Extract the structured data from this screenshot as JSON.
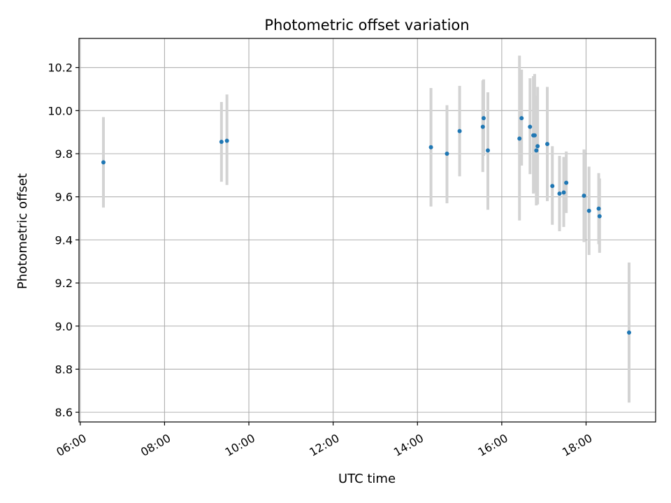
{
  "chart_data": {
    "type": "scatter",
    "title": "Photometric offset variation",
    "xlabel": "UTC time",
    "ylabel": "Photometric offset",
    "x_unit": "hours UTC",
    "xlim": [
      5.97,
      19.65
    ],
    "ylim": [
      8.555,
      10.335
    ],
    "x_ticks": [
      6,
      8,
      10,
      12,
      14,
      16,
      18
    ],
    "x_tick_labels": [
      "06:00",
      "08:00",
      "10:00",
      "12:00",
      "14:00",
      "16:00",
      "18:00"
    ],
    "y_ticks": [
      8.6,
      8.8,
      9.0,
      9.2,
      9.4,
      9.6,
      9.8,
      10.0,
      10.2
    ],
    "y_tick_labels": [
      "8.6",
      "8.8",
      "9.0",
      "9.2",
      "9.4",
      "9.6",
      "9.8",
      "10.0",
      "10.2"
    ],
    "grid": true,
    "colors": {
      "point": "#1f77b4",
      "errorbar": "#d3d3d3",
      "grid": "#b0b0b0"
    },
    "points": [
      {
        "t": 6.55,
        "y": 9.76,
        "lo": 9.55,
        "hi": 9.97
      },
      {
        "t": 9.35,
        "y": 9.855,
        "lo": 9.67,
        "hi": 10.04
      },
      {
        "t": 9.48,
        "y": 9.86,
        "lo": 9.655,
        "hi": 10.075
      },
      {
        "t": 14.32,
        "y": 9.83,
        "lo": 9.555,
        "hi": 10.105
      },
      {
        "t": 14.7,
        "y": 9.8,
        "lo": 9.57,
        "hi": 10.025
      },
      {
        "t": 15.0,
        "y": 9.905,
        "lo": 9.695,
        "hi": 10.115
      },
      {
        "t": 15.55,
        "y": 9.925,
        "lo": 9.715,
        "hi": 10.14
      },
      {
        "t": 15.57,
        "y": 9.965,
        "lo": 9.79,
        "hi": 10.145
      },
      {
        "t": 15.67,
        "y": 9.815,
        "lo": 9.54,
        "hi": 10.085
      },
      {
        "t": 16.42,
        "y": 9.87,
        "lo": 9.49,
        "hi": 10.255
      },
      {
        "t": 16.47,
        "y": 9.965,
        "lo": 9.745,
        "hi": 10.19
      },
      {
        "t": 16.67,
        "y": 9.925,
        "lo": 9.705,
        "hi": 10.15
      },
      {
        "t": 16.75,
        "y": 9.885,
        "lo": 9.615,
        "hi": 10.16
      },
      {
        "t": 16.78,
        "y": 9.885,
        "lo": 9.62,
        "hi": 10.17
      },
      {
        "t": 16.82,
        "y": 9.815,
        "lo": 9.56,
        "hi": 10.07
      },
      {
        "t": 16.85,
        "y": 9.835,
        "lo": 9.565,
        "hi": 10.11
      },
      {
        "t": 17.08,
        "y": 9.845,
        "lo": 9.58,
        "hi": 10.11
      },
      {
        "t": 17.2,
        "y": 9.65,
        "lo": 9.47,
        "hi": 9.835
      },
      {
        "t": 17.37,
        "y": 9.615,
        "lo": 9.44,
        "hi": 9.79
      },
      {
        "t": 17.47,
        "y": 9.62,
        "lo": 9.46,
        "hi": 9.785
      },
      {
        "t": 17.53,
        "y": 9.665,
        "lo": 9.525,
        "hi": 9.81
      },
      {
        "t": 17.95,
        "y": 9.605,
        "lo": 9.39,
        "hi": 9.82
      },
      {
        "t": 18.07,
        "y": 9.535,
        "lo": 9.33,
        "hi": 9.74
      },
      {
        "t": 18.3,
        "y": 9.545,
        "lo": 9.38,
        "hi": 9.71
      },
      {
        "t": 18.32,
        "y": 9.51,
        "lo": 9.34,
        "hi": 9.685
      },
      {
        "t": 19.02,
        "y": 8.97,
        "lo": 8.645,
        "hi": 9.295
      }
    ]
  }
}
